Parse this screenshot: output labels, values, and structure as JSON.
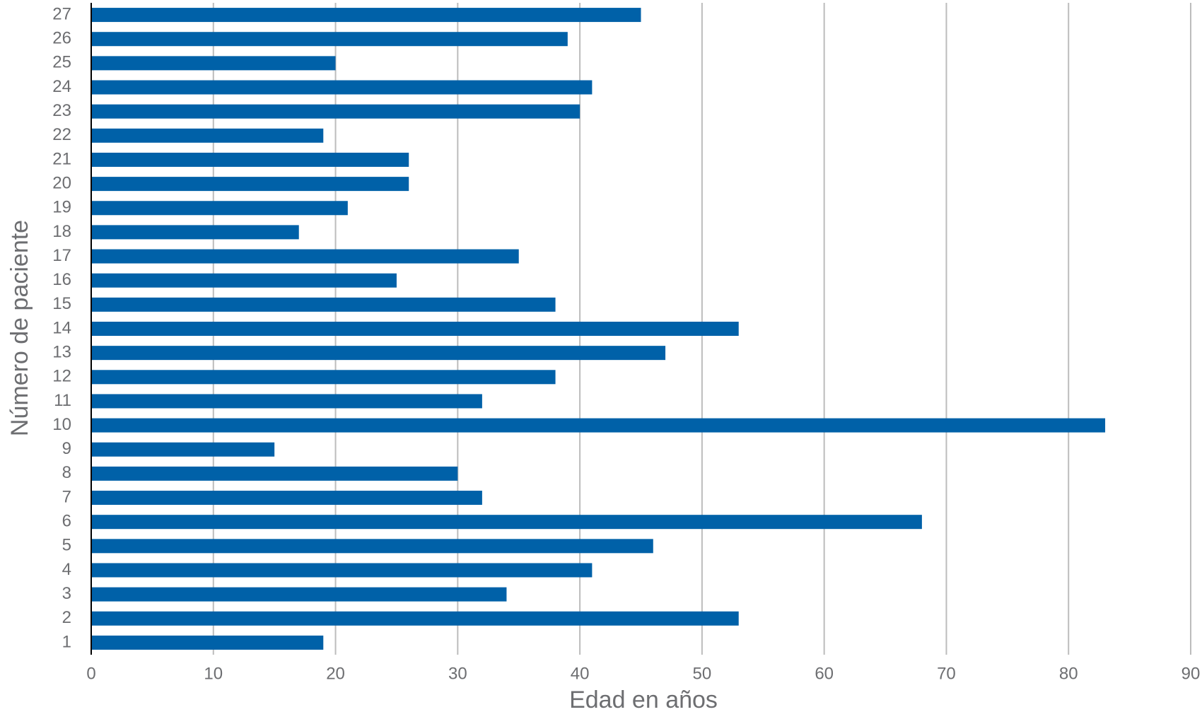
{
  "chart_data": {
    "type": "bar",
    "orientation": "horizontal",
    "x_label": "Edad en años",
    "y_label": "Número de paciente",
    "categories": [
      "1",
      "2",
      "3",
      "4",
      "5",
      "6",
      "7",
      "8",
      "9",
      "10",
      "11",
      "12",
      "13",
      "14",
      "15",
      "16",
      "17",
      "18",
      "19",
      "20",
      "21",
      "22",
      "23",
      "24",
      "25",
      "26",
      "27"
    ],
    "values": [
      19,
      53,
      34,
      41,
      46,
      68,
      32,
      30,
      15,
      83,
      32,
      38,
      47,
      53,
      38,
      25,
      35,
      17,
      21,
      26,
      26,
      19,
      40,
      41,
      20,
      39,
      45
    ],
    "color": "#0061a8",
    "xlim": [
      0,
      90
    ],
    "xticks": [
      0,
      10,
      20,
      30,
      40,
      50,
      60,
      70,
      80,
      90
    ],
    "grid": true
  }
}
